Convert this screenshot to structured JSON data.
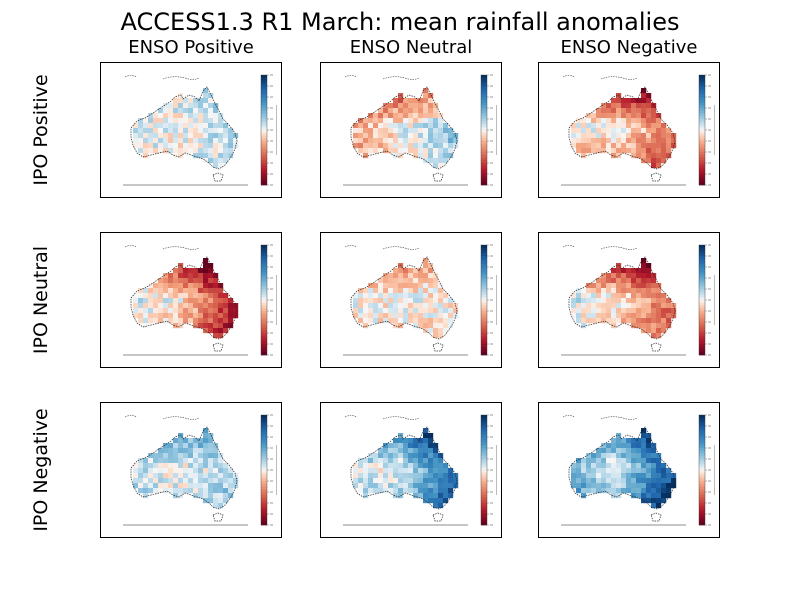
{
  "title": "ACCESS1.3 R1 March: mean rainfall anomalies",
  "chart_data": {
    "type": "heatmap",
    "title": "ACCESS1.3 R1 March: mean rainfall anomalies",
    "columns": [
      "ENSO Positive",
      "ENSO Neutral",
      "ENSO Negative"
    ],
    "rows": [
      "IPO Positive",
      "IPO Neutral",
      "IPO Negative"
    ],
    "colormap": {
      "diverging": true,
      "low_color": "#67001f",
      "mid_color": "#f7f7f7",
      "high_color": "#053061"
    },
    "panels": [
      {
        "row": "IPO Positive",
        "column": "ENSO Positive",
        "pattern": "weak-mixed",
        "north_bias": 0.1,
        "east_bias": 0.15,
        "south_bias": 0.0,
        "west_bias": 0.1
      },
      {
        "row": "IPO Positive",
        "column": "ENSO Neutral",
        "pattern": "dry-north-wet-east",
        "north_bias": -0.7,
        "east_bias": 0.35,
        "south_bias": -0.2,
        "west_bias": -0.3
      },
      {
        "row": "IPO Positive",
        "column": "ENSO Negative",
        "pattern": "dry-widespread",
        "north_bias": -0.9,
        "east_bias": -0.4,
        "south_bias": -0.5,
        "west_bias": 0.1
      },
      {
        "row": "IPO Neutral",
        "column": "ENSO Positive",
        "pattern": "dry-northeast",
        "north_bias": -0.9,
        "east_bias": -0.8,
        "south_bias": -0.3,
        "west_bias": 0.2
      },
      {
        "row": "IPO Neutral",
        "column": "ENSO Neutral",
        "pattern": "near-neutral",
        "north_bias": -0.4,
        "east_bias": 0.0,
        "south_bias": -0.1,
        "west_bias": 0.0
      },
      {
        "row": "IPO Neutral",
        "column": "ENSO Negative",
        "pattern": "dry-north",
        "north_bias": -1.0,
        "east_bias": -0.5,
        "south_bias": -0.2,
        "west_bias": 0.2
      },
      {
        "row": "IPO Negative",
        "column": "ENSO Positive",
        "pattern": "wet-light",
        "north_bias": 0.5,
        "east_bias": 0.2,
        "south_bias": 0.15,
        "west_bias": 0.2
      },
      {
        "row": "IPO Negative",
        "column": "ENSO Neutral",
        "pattern": "wet-east",
        "north_bias": 0.7,
        "east_bias": 0.8,
        "south_bias": 0.3,
        "west_bias": 0.1
      },
      {
        "row": "IPO Negative",
        "column": "ENSO Negative",
        "pattern": "very-wet",
        "north_bias": 0.6,
        "east_bias": 0.9,
        "south_bias": 0.5,
        "west_bias": 0.4
      }
    ]
  }
}
